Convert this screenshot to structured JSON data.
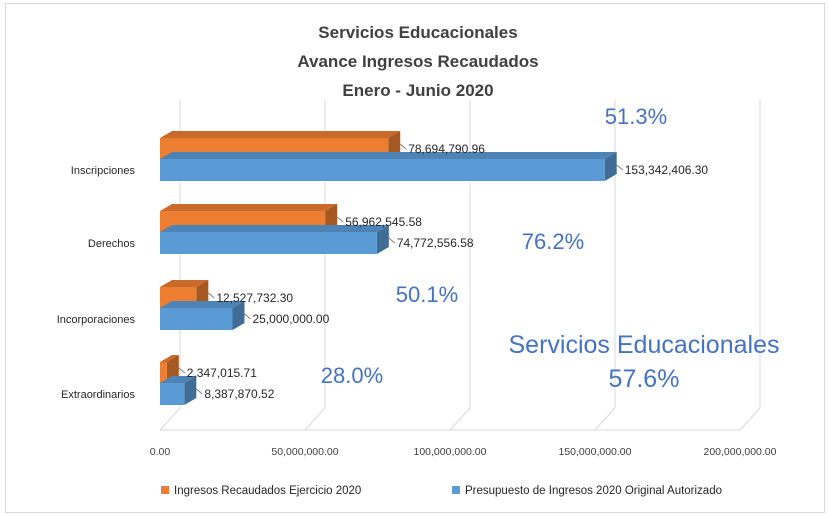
{
  "chart_data": {
    "type": "bar",
    "orientation": "horizontal",
    "title_lines": [
      "Servicios Educacionales",
      "Avance Ingresos Recaudados",
      "Enero - Junio 2020"
    ],
    "categories": [
      "Inscripciones",
      "Derechos",
      "Incorporaciones",
      "Extraordinarios"
    ],
    "series": [
      {
        "name": "Ingresos Recaudados Ejercicio 2020",
        "color": "#ed7d31",
        "values": [
          78694790.96,
          56962545.58,
          12527732.3,
          2347015.71
        ],
        "labels": [
          "78,694,790.96",
          "56,962,545.58",
          "12,527,732.30",
          "2,347,015.71"
        ]
      },
      {
        "name": "Presupuesto de Ingresos 2020 Original Autorizado",
        "color": "#5b9bd5",
        "values": [
          153342406.3,
          74772556.58,
          25000000.0,
          8387870.52
        ],
        "labels": [
          "153,342,406.30",
          "74,772,556.58",
          "25,000,000.00",
          "8,387,870.52"
        ]
      }
    ],
    "percentages": [
      "51.3%",
      "76.2%",
      "50.1%",
      "28.0%"
    ],
    "summary": {
      "label": "Servicios Educacionales",
      "value": "57.6%"
    },
    "xlim": [
      0,
      200000000
    ],
    "xticks": [
      0,
      50000000,
      100000000,
      150000000,
      200000000
    ],
    "xtick_labels": [
      "0.00",
      "50,000,000.00",
      "100,000,000.00",
      "150,000,000.00",
      "200,000,000.00"
    ],
    "grid": true,
    "legend_position": "bottom"
  }
}
